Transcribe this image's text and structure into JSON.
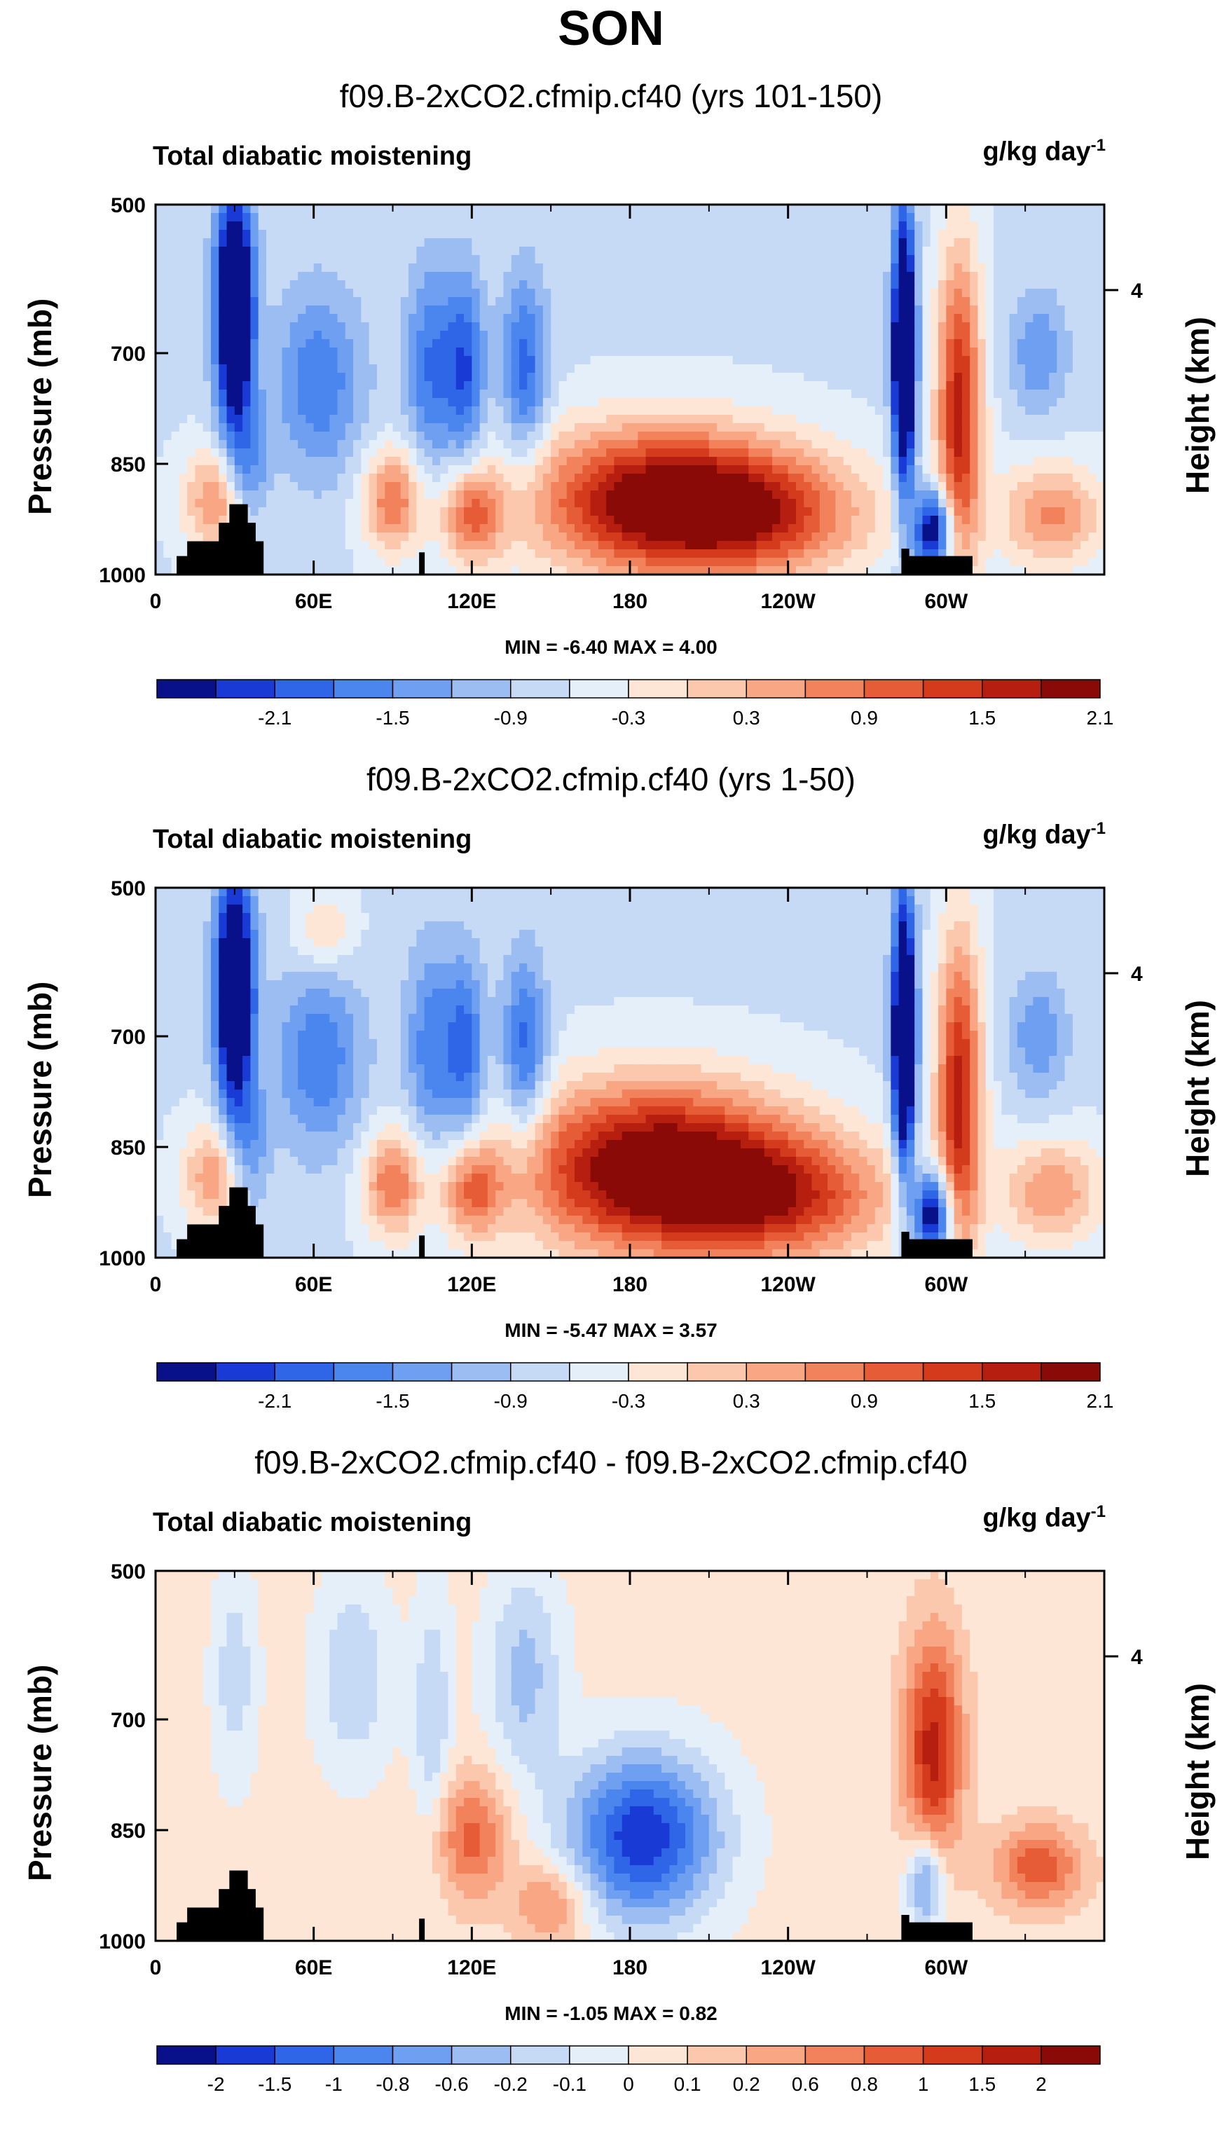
{
  "title": "SON",
  "chart_data": [
    {
      "type": "contour",
      "subtitle": "f09.B-2xCO2.cfmip.cf40 (yrs 101-150)",
      "plot_title": "Total diabatic moistening",
      "units_main": "g/kg day",
      "units_exp": "-1",
      "ylabel": "Pressure (mb)",
      "y2label": "Height (km)",
      "y2ticks": [
        "4"
      ],
      "yticks": [
        "500",
        "700",
        "850",
        "1000"
      ],
      "xticks": [
        "0",
        "60E",
        "120E",
        "180",
        "120W",
        "60W"
      ],
      "minmax": "MIN = -6.40   MAX =   4.00",
      "colorbar_labels": [
        "-2.1",
        "-1.5",
        "-0.9",
        "-0.3",
        "0.3",
        "0.9",
        "1.5",
        "2.1"
      ],
      "colorbar_colors": [
        "#08108a",
        "#1a3ad6",
        "#2f66e8",
        "#4a86ee",
        "#6e9ff0",
        "#9bbdf2",
        "#c6daf6",
        "#e4effa",
        "#fde6d6",
        "#fbc8ae",
        "#f8a684",
        "#f2825c",
        "#e65c36",
        "#d43a1c",
        "#b61e10",
        "#8a0a08"
      ],
      "xlim": [
        0,
        360
      ],
      "ylim": [
        500,
        1000
      ],
      "features": [
        {
          "lon": 30,
          "p": 640,
          "v": -3.4,
          "sx": 5,
          "sp": 110
        },
        {
          "lon": 35,
          "p": 870,
          "v": -1.2,
          "sx": 6,
          "sp": 60
        },
        {
          "lon": 25,
          "p": 900,
          "v": 1.4,
          "sx": 10,
          "sp": 50
        },
        {
          "lon": 62,
          "p": 740,
          "v": -1.1,
          "sx": 12,
          "sp": 90
        },
        {
          "lon": 90,
          "p": 900,
          "v": 1.5,
          "sx": 8,
          "sp": 50
        },
        {
          "lon": 105,
          "p": 720,
          "v": -1.2,
          "sx": 7,
          "sp": 100
        },
        {
          "lon": 118,
          "p": 720,
          "v": -1.3,
          "sx": 5,
          "sp": 90
        },
        {
          "lon": 140,
          "p": 720,
          "v": -1.3,
          "sx": 6,
          "sp": 90
        },
        {
          "lon": 120,
          "p": 920,
          "v": 1.5,
          "sx": 8,
          "sp": 45
        },
        {
          "lon": 190,
          "p": 900,
          "v": 2.6,
          "sx": 34,
          "sp": 70
        },
        {
          "lon": 230,
          "p": 920,
          "v": 1.5,
          "sx": 30,
          "sp": 60
        },
        {
          "lon": 284,
          "p": 700,
          "v": -3.6,
          "sx": 3,
          "sp": 130
        },
        {
          "lon": 295,
          "p": 940,
          "v": -2.5,
          "sx": 5,
          "sp": 40
        },
        {
          "lon": 305,
          "p": 780,
          "v": 2.3,
          "sx": 6,
          "sp": 150
        },
        {
          "lon": 335,
          "p": 700,
          "v": -0.8,
          "sx": 8,
          "sp": 60
        },
        {
          "lon": 340,
          "p": 920,
          "v": 1.3,
          "sx": 14,
          "sp": 50
        }
      ],
      "background": -0.35
    },
    {
      "type": "contour",
      "subtitle": "f09.B-2xCO2.cfmip.cf40 (yrs 1-50)",
      "plot_title": "Total diabatic moistening",
      "units_main": "g/kg day",
      "units_exp": "-1",
      "ylabel": "Pressure (mb)",
      "y2label": "Height (km)",
      "y2ticks": [
        "4"
      ],
      "yticks": [
        "500",
        "700",
        "850",
        "1000"
      ],
      "xticks": [
        "0",
        "60E",
        "120E",
        "180",
        "120W",
        "60W"
      ],
      "minmax": "MIN = -5.47   MAX =   3.57",
      "colorbar_labels": [
        "-2.1",
        "-1.5",
        "-0.9",
        "-0.3",
        "0.3",
        "0.9",
        "1.5",
        "2.1"
      ],
      "colorbar_colors": [
        "#08108a",
        "#1a3ad6",
        "#2f66e8",
        "#4a86ee",
        "#6e9ff0",
        "#9bbdf2",
        "#c6daf6",
        "#e4effa",
        "#fde6d6",
        "#fbc8ae",
        "#f8a684",
        "#f2825c",
        "#e65c36",
        "#d43a1c",
        "#b61e10",
        "#8a0a08"
      ],
      "xlim": [
        0,
        360
      ],
      "ylim": [
        500,
        1000
      ],
      "features": [
        {
          "lon": 30,
          "p": 640,
          "v": -3.3,
          "sx": 5,
          "sp": 110
        },
        {
          "lon": 35,
          "p": 870,
          "v": -1.2,
          "sx": 6,
          "sp": 60
        },
        {
          "lon": 25,
          "p": 890,
          "v": 1.4,
          "sx": 10,
          "sp": 50
        },
        {
          "lon": 62,
          "p": 730,
          "v": -1.1,
          "sx": 12,
          "sp": 90
        },
        {
          "lon": 90,
          "p": 900,
          "v": 1.5,
          "sx": 8,
          "sp": 50
        },
        {
          "lon": 105,
          "p": 720,
          "v": -1.1,
          "sx": 7,
          "sp": 100
        },
        {
          "lon": 118,
          "p": 720,
          "v": -1.2,
          "sx": 5,
          "sp": 90
        },
        {
          "lon": 140,
          "p": 720,
          "v": -1.3,
          "sx": 6,
          "sp": 90
        },
        {
          "lon": 120,
          "p": 910,
          "v": 1.4,
          "sx": 8,
          "sp": 45
        },
        {
          "lon": 190,
          "p": 880,
          "v": 3.0,
          "sx": 36,
          "sp": 80
        },
        {
          "lon": 240,
          "p": 920,
          "v": 1.6,
          "sx": 30,
          "sp": 60
        },
        {
          "lon": 284,
          "p": 700,
          "v": -3.6,
          "sx": 3,
          "sp": 130
        },
        {
          "lon": 295,
          "p": 940,
          "v": -2.6,
          "sx": 5,
          "sp": 40
        },
        {
          "lon": 305,
          "p": 780,
          "v": 2.3,
          "sx": 6,
          "sp": 150
        },
        {
          "lon": 335,
          "p": 700,
          "v": -0.8,
          "sx": 8,
          "sp": 60
        },
        {
          "lon": 340,
          "p": 910,
          "v": 1.2,
          "sx": 14,
          "sp": 50
        },
        {
          "lon": 64,
          "p": 560,
          "v": 0.7,
          "sx": 8,
          "sp": 40
        }
      ],
      "background": -0.35
    },
    {
      "type": "contour",
      "subtitle": "f09.B-2xCO2.cfmip.cf40 - f09.B-2xCO2.cfmip.cf40",
      "plot_title": "Total diabatic moistening",
      "units_main": "g/kg day",
      "units_exp": "-1",
      "ylabel": "Pressure (mb)",
      "y2label": "Height (km)",
      "y2ticks": [
        "4"
      ],
      "yticks": [
        "500",
        "700",
        "850",
        "1000"
      ],
      "xticks": [
        "0",
        "60E",
        "120E",
        "180",
        "120W",
        "60W"
      ],
      "minmax": "MIN = -1.05   MAX =   0.82",
      "colorbar_labels": [
        "-2",
        "-1.5",
        "-1",
        "-0.8",
        "-0.6",
        "-0.2",
        "-0.1",
        "0",
        "0.1",
        "0.2",
        "0.6",
        "0.8",
        "1",
        "1.5",
        "2"
      ],
      "colorbar_colors": [
        "#08108a",
        "#1a3ad6",
        "#2f66e8",
        "#4a86ee",
        "#6e9ff0",
        "#9bbdf2",
        "#c6daf6",
        "#e4effa",
        "#fde6d6",
        "#fbc8ae",
        "#f8a684",
        "#f2825c",
        "#e65c36",
        "#d43a1c",
        "#b61e10",
        "#8a0a08"
      ],
      "xlim": [
        0,
        360
      ],
      "ylim": [
        500,
        1000
      ],
      "features": [
        {
          "lon": 185,
          "p": 860,
          "v": -0.9,
          "sx": 20,
          "sp": 80
        },
        {
          "lon": 140,
          "p": 640,
          "v": -0.35,
          "sx": 10,
          "sp": 100
        },
        {
          "lon": 75,
          "p": 640,
          "v": -0.3,
          "sx": 10,
          "sp": 90
        },
        {
          "lon": 105,
          "p": 700,
          "v": -0.3,
          "sx": 5,
          "sp": 120
        },
        {
          "lon": 30,
          "p": 640,
          "v": -0.25,
          "sx": 6,
          "sp": 100
        },
        {
          "lon": 295,
          "p": 740,
          "v": 0.75,
          "sx": 8,
          "sp": 110
        },
        {
          "lon": 292,
          "p": 920,
          "v": -0.6,
          "sx": 5,
          "sp": 45
        },
        {
          "lon": 335,
          "p": 900,
          "v": 0.55,
          "sx": 12,
          "sp": 40
        },
        {
          "lon": 120,
          "p": 860,
          "v": 0.5,
          "sx": 10,
          "sp": 60
        },
        {
          "lon": 150,
          "p": 950,
          "v": 0.4,
          "sx": 10,
          "sp": 40
        }
      ],
      "background": 0.05
    }
  ]
}
